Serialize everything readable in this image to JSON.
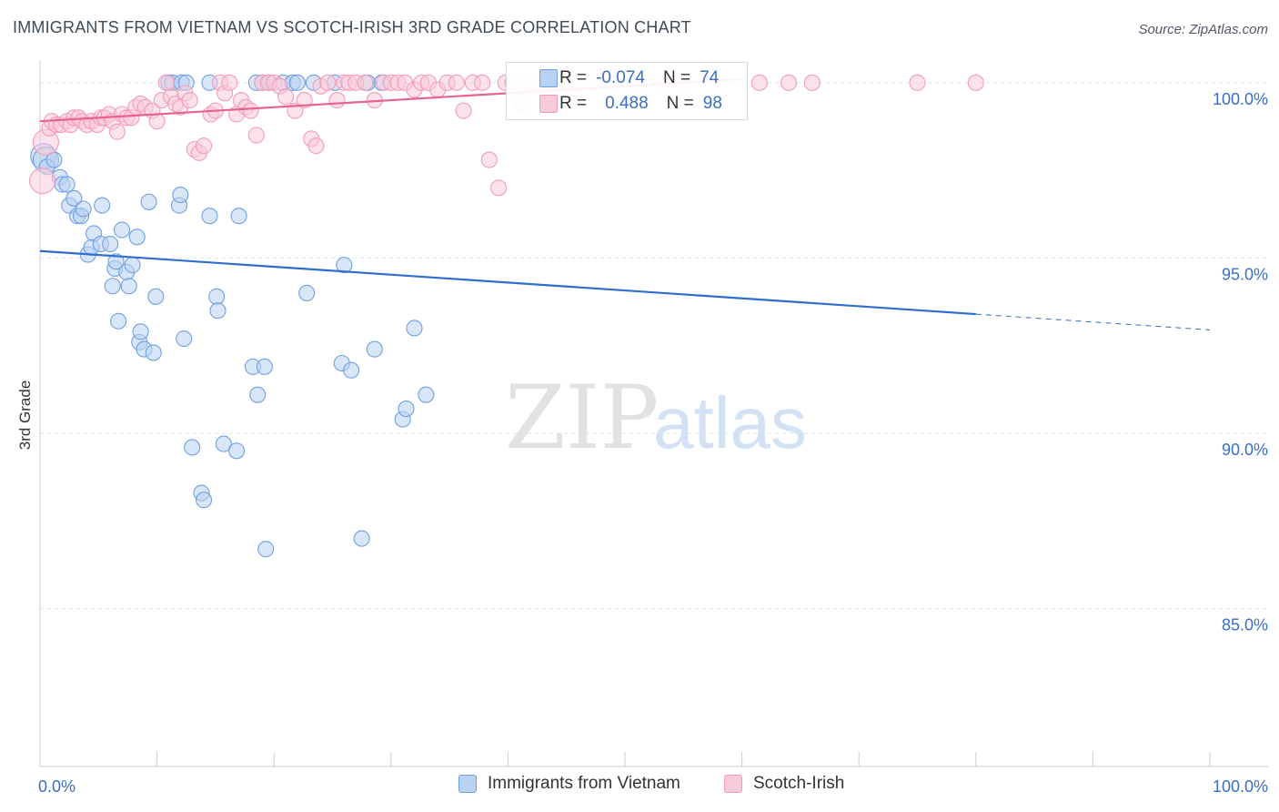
{
  "title": "IMMIGRANTS FROM VIETNAM VS SCOTCH-IRISH 3RD GRADE CORRELATION CHART",
  "source": "Source: ZipAtlas.com",
  "watermark": {
    "zip": "ZIP",
    "atlas": "atlas"
  },
  "legend_box": {
    "rows": [
      {
        "r_label": "R =",
        "r_value": "-0.074",
        "n_label": "N =",
        "n_value": "74",
        "color": "#6fa0e3"
      },
      {
        "r_label": "R =",
        "r_value": "0.488",
        "n_label": "N =",
        "n_value": "98",
        "color": "#f29cb8"
      }
    ]
  },
  "chart_data": {
    "type": "scatter",
    "title": "IMMIGRANTS FROM VIETNAM VS SCOTCH-IRISH 3RD GRADE CORRELATION CHART",
    "xlabel": "",
    "ylabel": "3rd Grade",
    "xlim": [
      0,
      100
    ],
    "ylim": [
      80.5,
      100.8
    ],
    "x_tick_labels": [
      "0.0%",
      "100.0%"
    ],
    "y_ticks": [
      85,
      90,
      95,
      100
    ],
    "y_tick_labels": [
      "85.0%",
      "90.0%",
      "95.0%",
      "100.0%"
    ],
    "grid": true,
    "legend_position": "bottom",
    "series": [
      {
        "name": "Immigrants from Vietnam",
        "color": "#6fa0e3",
        "fill": "#b9d2f2",
        "R": -0.074,
        "N": 74,
        "trend": {
          "x0": 0,
          "y0": 95.2,
          "x1": 80,
          "y1": 93.4,
          "dash_to_x": 100,
          "dash_to_y": 92.95
        },
        "points": [
          [
            0.3,
            97.9
          ],
          [
            0.5,
            97.8
          ],
          [
            0.6,
            97.6
          ],
          [
            1.2,
            97.8
          ],
          [
            1.7,
            97.3
          ],
          [
            1.9,
            97.1
          ],
          [
            2.3,
            97.1
          ],
          [
            2.5,
            96.5
          ],
          [
            2.9,
            96.7
          ],
          [
            3.2,
            96.2
          ],
          [
            3.5,
            96.2
          ],
          [
            3.7,
            96.4
          ],
          [
            4.1,
            95.1
          ],
          [
            4.6,
            95.7
          ],
          [
            4.4,
            95.3
          ],
          [
            5.2,
            95.4
          ],
          [
            5.3,
            96.5
          ],
          [
            6.0,
            95.4
          ],
          [
            6.2,
            94.2
          ],
          [
            6.4,
            94.7
          ],
          [
            6.5,
            94.9
          ],
          [
            6.7,
            93.2
          ],
          [
            7.0,
            95.8
          ],
          [
            7.4,
            94.6
          ],
          [
            7.6,
            94.2
          ],
          [
            7.9,
            94.8
          ],
          [
            8.3,
            95.6
          ],
          [
            8.5,
            92.6
          ],
          [
            8.6,
            92.9
          ],
          [
            8.9,
            92.4
          ],
          [
            9.3,
            96.6
          ],
          [
            9.7,
            92.3
          ],
          [
            9.9,
            93.9
          ],
          [
            11.0,
            100.0
          ],
          [
            11.3,
            100.0
          ],
          [
            11.9,
            96.5
          ],
          [
            12.0,
            96.8
          ],
          [
            12.1,
            100.0
          ],
          [
            12.3,
            92.7
          ],
          [
            12.5,
            100.0
          ],
          [
            13.0,
            89.6
          ],
          [
            13.8,
            88.3
          ],
          [
            14.0,
            88.1
          ],
          [
            14.5,
            96.2
          ],
          [
            14.5,
            100.0
          ],
          [
            15.1,
            93.9
          ],
          [
            15.2,
            93.5
          ],
          [
            15.7,
            89.7
          ],
          [
            16.8,
            89.5
          ],
          [
            17.0,
            96.2
          ],
          [
            18.2,
            91.9
          ],
          [
            18.5,
            100.0
          ],
          [
            18.6,
            91.1
          ],
          [
            19.0,
            100.0
          ],
          [
            19.2,
            91.9
          ],
          [
            19.3,
            86.7
          ],
          [
            19.6,
            100.0
          ],
          [
            20.8,
            100.0
          ],
          [
            21.6,
            100.0
          ],
          [
            22.0,
            100.0
          ],
          [
            22.8,
            94.0
          ],
          [
            23.4,
            100.0
          ],
          [
            25.2,
            100.0
          ],
          [
            25.8,
            92.0
          ],
          [
            26.0,
            94.8
          ],
          [
            26.6,
            91.8
          ],
          [
            27.5,
            87.0
          ],
          [
            28.0,
            100.0
          ],
          [
            28.6,
            92.4
          ],
          [
            29.2,
            100.0
          ],
          [
            31.0,
            90.4
          ],
          [
            31.3,
            90.7
          ],
          [
            32.0,
            93.0
          ],
          [
            33.0,
            91.1
          ]
        ]
      },
      {
        "name": "Scotch-Irish",
        "color": "#f29cb8",
        "fill": "#f9cad9",
        "R": 0.488,
        "N": 98,
        "trend": {
          "x0": 0,
          "y0": 98.9,
          "x1": 60,
          "y1": 100.1
        },
        "points": [
          [
            0.2,
            97.2
          ],
          [
            0.5,
            98.3
          ],
          [
            0.8,
            98.7
          ],
          [
            1.0,
            98.9
          ],
          [
            1.4,
            98.8
          ],
          [
            1.8,
            98.8
          ],
          [
            2.3,
            98.9
          ],
          [
            2.6,
            98.8
          ],
          [
            2.9,
            99.0
          ],
          [
            3.3,
            99.0
          ],
          [
            3.6,
            98.9
          ],
          [
            4.0,
            98.8
          ],
          [
            4.4,
            98.9
          ],
          [
            4.9,
            98.8
          ],
          [
            5.2,
            99.0
          ],
          [
            5.5,
            99.0
          ],
          [
            5.9,
            99.1
          ],
          [
            6.2,
            98.9
          ],
          [
            6.6,
            98.6
          ],
          [
            7.0,
            99.1
          ],
          [
            7.4,
            99.0
          ],
          [
            7.8,
            99.0
          ],
          [
            8.2,
            99.3
          ],
          [
            8.6,
            99.4
          ],
          [
            9.0,
            99.3
          ],
          [
            9.6,
            99.2
          ],
          [
            10.0,
            98.9
          ],
          [
            10.4,
            99.5
          ],
          [
            10.8,
            100.0
          ],
          [
            11.2,
            99.6
          ],
          [
            11.6,
            99.4
          ],
          [
            12.0,
            99.3
          ],
          [
            12.4,
            99.7
          ],
          [
            12.8,
            99.5
          ],
          [
            13.2,
            98.1
          ],
          [
            13.6,
            98.0
          ],
          [
            14.0,
            98.2
          ],
          [
            14.6,
            99.1
          ],
          [
            15.0,
            99.2
          ],
          [
            15.4,
            100.0
          ],
          [
            15.8,
            99.7
          ],
          [
            16.2,
            100.0
          ],
          [
            16.8,
            99.1
          ],
          [
            17.2,
            99.5
          ],
          [
            17.6,
            99.3
          ],
          [
            18.0,
            99.2
          ],
          [
            18.5,
            98.5
          ],
          [
            19.0,
            100.0
          ],
          [
            19.5,
            100.0
          ],
          [
            20.0,
            100.0
          ],
          [
            20.5,
            99.9
          ],
          [
            21.0,
            99.6
          ],
          [
            21.8,
            99.2
          ],
          [
            22.6,
            99.5
          ],
          [
            23.2,
            98.4
          ],
          [
            23.6,
            98.2
          ],
          [
            24.0,
            99.9
          ],
          [
            24.6,
            100.0
          ],
          [
            25.4,
            99.5
          ],
          [
            26.0,
            100.0
          ],
          [
            26.4,
            100.0
          ],
          [
            27.0,
            100.0
          ],
          [
            27.8,
            100.0
          ],
          [
            28.6,
            99.5
          ],
          [
            29.4,
            100.0
          ],
          [
            30.0,
            100.0
          ],
          [
            30.6,
            100.0
          ],
          [
            31.2,
            100.0
          ],
          [
            32.0,
            99.8
          ],
          [
            32.6,
            100.0
          ],
          [
            33.2,
            100.0
          ],
          [
            34.0,
            99.8
          ],
          [
            34.8,
            100.0
          ],
          [
            35.6,
            100.0
          ],
          [
            36.2,
            99.2
          ],
          [
            37.0,
            100.0
          ],
          [
            37.8,
            100.0
          ],
          [
            38.4,
            97.8
          ],
          [
            39.2,
            97.0
          ],
          [
            39.8,
            100.0
          ],
          [
            40.4,
            100.0
          ],
          [
            41.2,
            99.4
          ],
          [
            42.0,
            100.0
          ],
          [
            42.8,
            100.0
          ],
          [
            43.6,
            100.0
          ],
          [
            44.2,
            100.0
          ],
          [
            45.0,
            100.0
          ],
          [
            46.0,
            100.0
          ],
          [
            47.5,
            100.0
          ],
          [
            49.0,
            100.0
          ],
          [
            51.0,
            100.0
          ],
          [
            53.0,
            100.0
          ],
          [
            55.0,
            100.0
          ],
          [
            61.5,
            100.0
          ],
          [
            64.0,
            100.0
          ],
          [
            66.0,
            100.0
          ],
          [
            75.0,
            100.0
          ],
          [
            80.0,
            100.0
          ]
        ]
      }
    ]
  }
}
